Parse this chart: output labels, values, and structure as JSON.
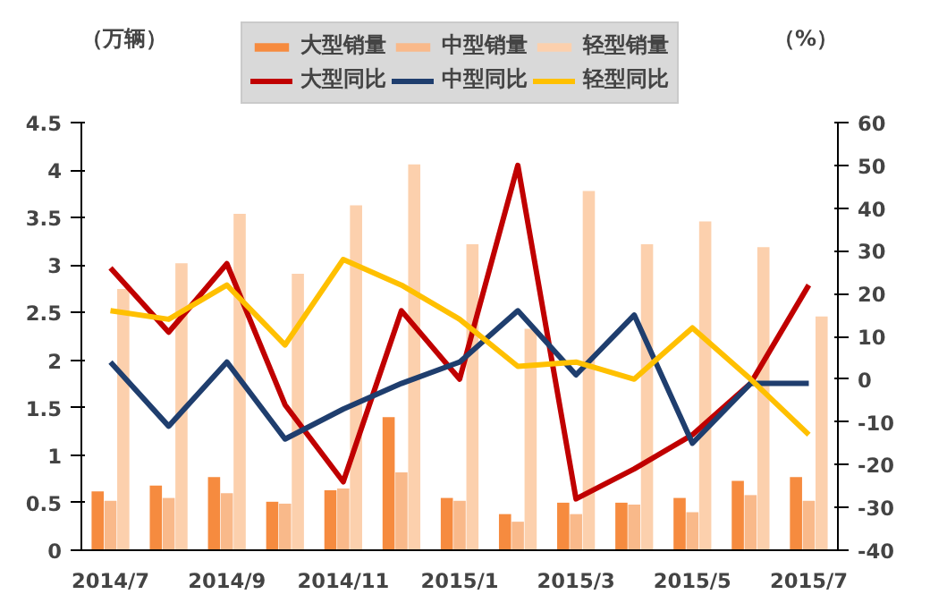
{
  "chart_data": {
    "type": "bar",
    "ylabel": "（万辆）",
    "y2label": "（%）",
    "categories": [
      "2014/7",
      null,
      "2014/9",
      null,
      "2014/11",
      null,
      "2015/1",
      null,
      "2015/3",
      null,
      "2015/5",
      null,
      "2015/7"
    ],
    "series": [
      {
        "name": "大型销量",
        "color": "#f68b3f",
        "values": [
          0.62,
          0.68,
          0.77,
          0.51,
          0.63,
          1.4,
          0.55,
          0.38,
          0.5,
          0.5,
          0.55,
          0.73,
          0.77
        ]
      },
      {
        "name": "中型销量",
        "color": "#f9b98a",
        "values": [
          0.52,
          0.55,
          0.6,
          0.49,
          0.65,
          0.82,
          0.52,
          0.3,
          0.38,
          0.48,
          0.4,
          0.58,
          0.52
        ]
      },
      {
        "name": "轻型销量",
        "color": "#fcd0ad",
        "values": [
          2.75,
          3.02,
          3.54,
          2.91,
          3.63,
          4.06,
          3.22,
          2.33,
          3.78,
          3.22,
          3.46,
          3.19,
          2.46
        ]
      },
      {
        "name": "大型同比",
        "color": "#c00000",
        "type": "line",
        "axis": "y2",
        "values": [
          26,
          11,
          27,
          -6,
          -24,
          16,
          0,
          50,
          -28,
          -21,
          -13,
          -1,
          22
        ]
      },
      {
        "name": "中型同比",
        "color": "#1f3e6e",
        "type": "line",
        "axis": "y2",
        "values": [
          4,
          -11,
          4,
          -14,
          -7,
          -1,
          4,
          16,
          1,
          15,
          -15,
          -1,
          -1
        ]
      },
      {
        "name": "轻型同比",
        "color": "#ffc000",
        "type": "line",
        "axis": "y2",
        "values": [
          16,
          14,
          22,
          8,
          28,
          22,
          14,
          3,
          4,
          0,
          12,
          0,
          -13
        ]
      }
    ],
    "ylim": [
      0,
      4.5
    ],
    "yticks": [
      0,
      0.5,
      1,
      1.5,
      2,
      2.5,
      3,
      3.5,
      4,
      4.5
    ],
    "y2lim": [
      -40,
      60
    ],
    "y2ticks": [
      -40,
      -30,
      -20,
      -10,
      0,
      10,
      20,
      30,
      40,
      50,
      60
    ],
    "grid": false,
    "legend": "top",
    "line_style": "solid",
    "marker": "none"
  }
}
